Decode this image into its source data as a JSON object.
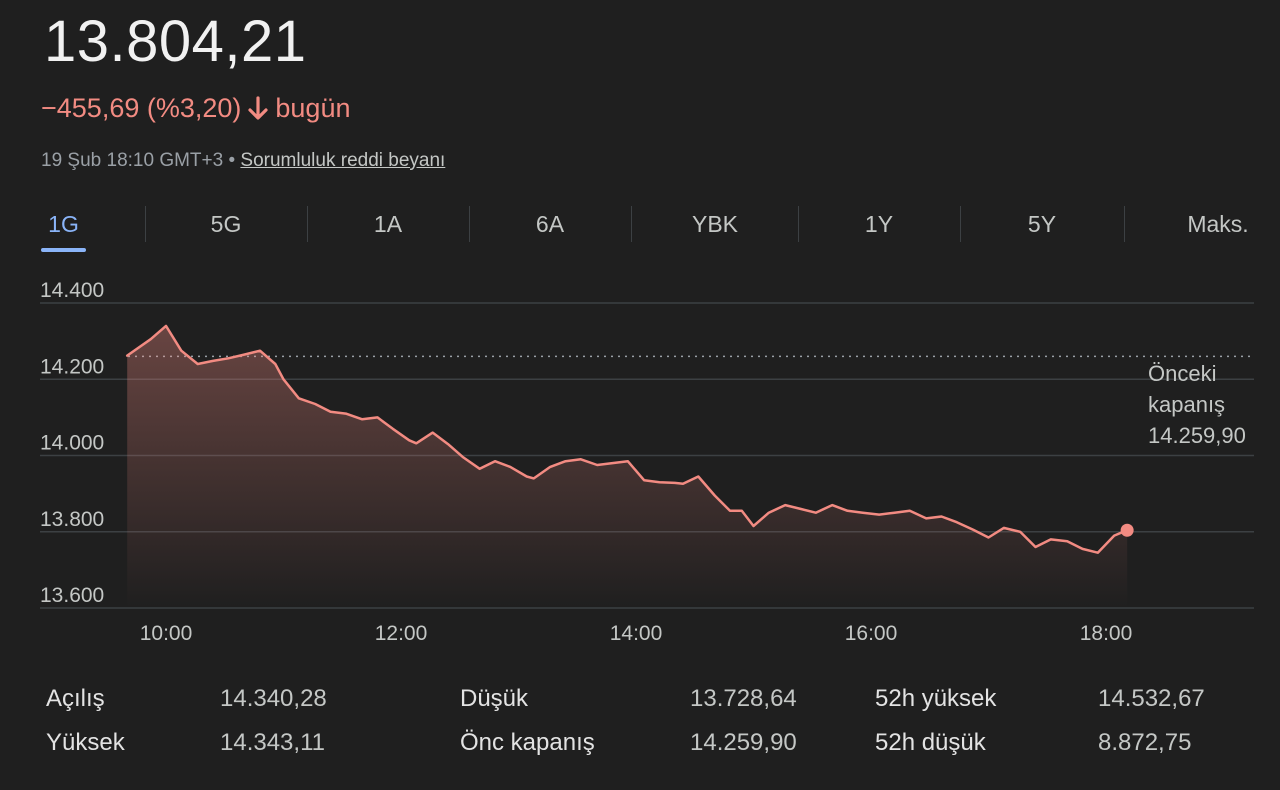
{
  "quote": {
    "price": "13.804,21",
    "change": "−455,69 (%3,20)",
    "change_suffix": "bugün",
    "timestamp": "19 Şub 18:10 GMT+3",
    "separator": "•",
    "disclaimer": "Sorumluluk reddi beyanı",
    "down_color": "#f28b82"
  },
  "tabs": [
    {
      "label": "1G",
      "active": true
    },
    {
      "label": "5G",
      "active": false
    },
    {
      "label": "1A",
      "active": false
    },
    {
      "label": "6A",
      "active": false
    },
    {
      "label": "YBK",
      "active": false
    },
    {
      "label": "1Y",
      "active": false
    },
    {
      "label": "5Y",
      "active": false
    },
    {
      "label": "Maks.",
      "active": false
    }
  ],
  "chart_data": {
    "type": "area",
    "y_ticks": [
      "14.400",
      "14.200",
      "14.000",
      "13.800",
      "13.600"
    ],
    "x_ticks": [
      "10:00",
      "12:00",
      "14:00",
      "16:00",
      "18:00"
    ],
    "ylim": [
      13600,
      14400
    ],
    "previous_close_label": [
      "Önceki",
      "kapanış",
      "14.259,90"
    ],
    "previous_close": 14259.9,
    "line_color": "#f28b82",
    "series": [
      {
        "values_x_hours": [
          9.67,
          9.87,
          10.0,
          10.13,
          10.27,
          10.4,
          10.53,
          10.67,
          10.8,
          10.93,
          11.0,
          11.13,
          11.27,
          11.4,
          11.53,
          11.67,
          11.8,
          11.93,
          12.07,
          12.13,
          12.27,
          12.4,
          12.53,
          12.67,
          12.8,
          12.93,
          13.07,
          13.13,
          13.27,
          13.4,
          13.53,
          13.67,
          13.8,
          13.93,
          14.07,
          14.2,
          14.33,
          14.4,
          14.53,
          14.67,
          14.8,
          14.9,
          15.0,
          15.13,
          15.27,
          15.4,
          15.53,
          15.67,
          15.8,
          15.93,
          16.07,
          16.2,
          16.33,
          16.47,
          16.6,
          16.73,
          16.87,
          17.0,
          17.13,
          17.27,
          17.4,
          17.53,
          17.67,
          17.8,
          17.93,
          18.07,
          18.18
        ],
        "values": [
          14262,
          14305,
          14340,
          14275,
          14240,
          14248,
          14255,
          14265,
          14275,
          14240,
          14200,
          14150,
          14135,
          14115,
          14110,
          14095,
          14100,
          14070,
          14040,
          14032,
          14060,
          14030,
          13995,
          13965,
          13985,
          13970,
          13945,
          13940,
          13970,
          13985,
          13990,
          13975,
          13980,
          13985,
          13935,
          13930,
          13928,
          13926,
          13945,
          13895,
          13855,
          13855,
          13815,
          13850,
          13870,
          13860,
          13850,
          13870,
          13855,
          13850,
          13845,
          13850,
          13855,
          13835,
          13840,
          13825,
          13805,
          13785,
          13810,
          13800,
          13760,
          13780,
          13775,
          13755,
          13745,
          13790,
          13804
        ]
      }
    ]
  },
  "stats": [
    {
      "label": "Açılış",
      "value": "14.340,28"
    },
    {
      "label": "Yüksek",
      "value": "14.343,11"
    },
    {
      "label": "Düşük",
      "value": "13.728,64"
    },
    {
      "label": "Önc kapanış",
      "value": "14.259,90"
    },
    {
      "label": "52h yüksek",
      "value": "14.532,67"
    },
    {
      "label": "52h düşük",
      "value": "8.872,75"
    }
  ]
}
